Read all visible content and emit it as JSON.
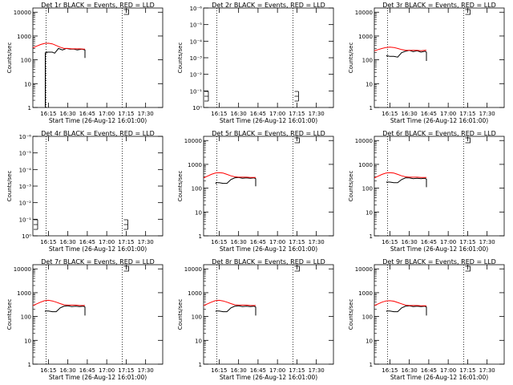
{
  "colors": {
    "events": "#000000",
    "lld": "#ff0000",
    "axes": "#000000",
    "background": "#ffffff"
  },
  "common": {
    "xlabel": "Start Time (26-Aug-12 16:01:00)",
    "ylabel": "Counts/sec",
    "xticks": [
      {
        "t": 16.25,
        "label": "16:15"
      },
      {
        "t": 16.5,
        "label": "16:30"
      },
      {
        "t": 16.75,
        "label": "16:45"
      },
      {
        "t": 17.0,
        "label": "17:00"
      },
      {
        "t": 17.25,
        "label": "17:15"
      },
      {
        "t": 17.5,
        "label": "17:30"
      }
    ],
    "xlim": [
      16.05,
      17.72
    ],
    "dotted_lines": [
      16.22,
      17.2
    ],
    "log_ticks": [
      {
        "v": 1,
        "label": "1"
      },
      {
        "v": 10,
        "label": "10"
      },
      {
        "v": 100,
        "label": "100"
      },
      {
        "v": 1000,
        "label": "1000"
      },
      {
        "v": 10000,
        "label": "10000"
      }
    ],
    "ylim_log": [
      1,
      15000
    ],
    "small_ticks": [
      {
        "v": 0,
        "label": "10⁰"
      },
      {
        "v": 1,
        "label": "10⁻¹"
      },
      {
        "v": 2,
        "label": "10⁻²"
      },
      {
        "v": 3,
        "label": "10⁻³"
      },
      {
        "v": 4,
        "label": "10⁻⁴"
      },
      {
        "v": 5,
        "label": "10⁻⁵"
      },
      {
        "v": 6,
        "label": "10⁻⁶"
      }
    ],
    "ylim_small": [
      0,
      6
    ]
  },
  "chart_data": [
    {
      "title": "Det 1r BLACK = Events, RED = LLD",
      "type": "line",
      "yscale": "log",
      "series": [
        {
          "name": "Events",
          "color": "#000000",
          "x": [
            16.21,
            16.21,
            16.23,
            16.23,
            16.3,
            16.33,
            16.38,
            16.43,
            16.48,
            16.53,
            16.58,
            16.62,
            16.68,
            16.72,
            16.72
          ],
          "y": [
            1,
            200,
            200,
            210,
            210,
            190,
            300,
            260,
            300,
            280,
            280,
            260,
            280,
            260,
            120
          ]
        },
        {
          "name": "LLD",
          "color": "#ff0000",
          "x": [
            16.05,
            16.1,
            16.15,
            16.2,
            16.25,
            16.3,
            16.35,
            16.4,
            16.45,
            16.5,
            16.55,
            16.6,
            16.65,
            16.7,
            16.72
          ],
          "y": [
            320,
            380,
            440,
            490,
            500,
            470,
            400,
            340,
            300,
            300,
            290,
            290,
            290,
            280,
            280
          ]
        }
      ]
    },
    {
      "title": "Det 2r BLACK = Events, RED = LLD",
      "type": "line",
      "yscale": "log-small",
      "series": []
    },
    {
      "title": "Det 3r BLACK = Events, RED = LLD",
      "type": "line",
      "yscale": "log",
      "series": [
        {
          "name": "Events",
          "color": "#000000",
          "x": [
            16.21,
            16.21,
            16.25,
            16.3,
            16.35,
            16.4,
            16.45,
            16.5,
            16.55,
            16.6,
            16.65,
            16.7,
            16.72,
            16.72
          ],
          "y": [
            140,
            150,
            140,
            140,
            130,
            200,
            230,
            250,
            220,
            240,
            210,
            230,
            210,
            90
          ]
        },
        {
          "name": "LLD",
          "color": "#ff0000",
          "x": [
            16.05,
            16.1,
            16.15,
            16.2,
            16.25,
            16.3,
            16.35,
            16.4,
            16.45,
            16.5,
            16.55,
            16.6,
            16.65,
            16.7,
            16.72
          ],
          "y": [
            240,
            270,
            300,
            330,
            340,
            330,
            300,
            270,
            250,
            250,
            250,
            250,
            240,
            250,
            250
          ]
        }
      ]
    },
    {
      "title": "Det 4r BLACK = Events, RED = LLD",
      "type": "line",
      "yscale": "log-small",
      "series": []
    },
    {
      "title": "Det 5r BLACK = Events, RED = LLD",
      "type": "line",
      "yscale": "log",
      "series": [
        {
          "name": "Events",
          "color": "#000000",
          "x": [
            16.21,
            16.21,
            16.25,
            16.3,
            16.35,
            16.4,
            16.45,
            16.5,
            16.55,
            16.6,
            16.65,
            16.7,
            16.72,
            16.72
          ],
          "y": [
            150,
            170,
            170,
            160,
            160,
            230,
            270,
            280,
            260,
            270,
            260,
            270,
            250,
            120
          ]
        },
        {
          "name": "LLD",
          "color": "#ff0000",
          "x": [
            16.05,
            16.1,
            16.15,
            16.2,
            16.25,
            16.3,
            16.35,
            16.4,
            16.45,
            16.5,
            16.55,
            16.6,
            16.65,
            16.7,
            16.72
          ],
          "y": [
            270,
            320,
            380,
            430,
            450,
            430,
            380,
            330,
            300,
            290,
            290,
            290,
            280,
            280,
            280
          ]
        }
      ]
    },
    {
      "title": "Det 6r BLACK = Events, RED = LLD",
      "type": "line",
      "yscale": "log",
      "series": [
        {
          "name": "Events",
          "color": "#000000",
          "x": [
            16.21,
            16.21,
            16.25,
            16.3,
            16.35,
            16.4,
            16.45,
            16.5,
            16.55,
            16.6,
            16.65,
            16.7,
            16.72,
            16.72
          ],
          "y": [
            170,
            180,
            180,
            170,
            170,
            230,
            270,
            270,
            250,
            260,
            250,
            260,
            240,
            110
          ]
        },
        {
          "name": "LLD",
          "color": "#ff0000",
          "x": [
            16.05,
            16.1,
            16.15,
            16.2,
            16.25,
            16.3,
            16.35,
            16.4,
            16.45,
            16.5,
            16.55,
            16.6,
            16.65,
            16.7,
            16.72
          ],
          "y": [
            270,
            320,
            380,
            430,
            450,
            430,
            380,
            330,
            300,
            290,
            290,
            290,
            280,
            280,
            280
          ]
        }
      ]
    },
    {
      "title": "Det 7r BLACK = Events, RED = LLD",
      "type": "line",
      "yscale": "log",
      "series": [
        {
          "name": "Events",
          "color": "#000000",
          "x": [
            16.21,
            16.21,
            16.25,
            16.3,
            16.35,
            16.4,
            16.45,
            16.5,
            16.55,
            16.6,
            16.65,
            16.7,
            16.72,
            16.72
          ],
          "y": [
            160,
            170,
            170,
            160,
            160,
            230,
            270,
            280,
            260,
            270,
            260,
            270,
            250,
            110
          ]
        },
        {
          "name": "LLD",
          "color": "#ff0000",
          "x": [
            16.05,
            16.1,
            16.15,
            16.2,
            16.25,
            16.3,
            16.35,
            16.4,
            16.45,
            16.5,
            16.55,
            16.6,
            16.65,
            16.7,
            16.72
          ],
          "y": [
            290,
            340,
            400,
            460,
            480,
            450,
            400,
            350,
            310,
            300,
            300,
            300,
            290,
            290,
            290
          ]
        }
      ]
    },
    {
      "title": "Det 8r BLACK = Events, RED = LLD",
      "type": "line",
      "yscale": "log",
      "series": [
        {
          "name": "Events",
          "color": "#000000",
          "x": [
            16.21,
            16.21,
            16.25,
            16.3,
            16.35,
            16.4,
            16.45,
            16.5,
            16.55,
            16.6,
            16.65,
            16.7,
            16.72,
            16.72
          ],
          "y": [
            160,
            170,
            170,
            160,
            160,
            230,
            270,
            280,
            260,
            270,
            260,
            270,
            250,
            110
          ]
        },
        {
          "name": "LLD",
          "color": "#ff0000",
          "x": [
            16.05,
            16.1,
            16.15,
            16.2,
            16.25,
            16.3,
            16.35,
            16.4,
            16.45,
            16.5,
            16.55,
            16.6,
            16.65,
            16.7,
            16.72
          ],
          "y": [
            290,
            340,
            400,
            460,
            480,
            450,
            400,
            350,
            310,
            300,
            300,
            300,
            290,
            290,
            290
          ]
        }
      ]
    },
    {
      "title": "Det 9r BLACK = Events, RED = LLD",
      "type": "line",
      "yscale": "log",
      "series": [
        {
          "name": "Events",
          "color": "#000000",
          "x": [
            16.21,
            16.21,
            16.25,
            16.3,
            16.35,
            16.4,
            16.45,
            16.5,
            16.55,
            16.6,
            16.65,
            16.7,
            16.72,
            16.72
          ],
          "y": [
            160,
            170,
            170,
            160,
            160,
            230,
            270,
            280,
            260,
            270,
            260,
            270,
            250,
            110
          ]
        },
        {
          "name": "LLD",
          "color": "#ff0000",
          "x": [
            16.05,
            16.1,
            16.15,
            16.2,
            16.25,
            16.3,
            16.35,
            16.4,
            16.45,
            16.5,
            16.55,
            16.6,
            16.65,
            16.7,
            16.72
          ],
          "y": [
            290,
            340,
            400,
            450,
            460,
            440,
            390,
            340,
            300,
            290,
            290,
            290,
            280,
            280,
            280
          ]
        }
      ]
    }
  ]
}
